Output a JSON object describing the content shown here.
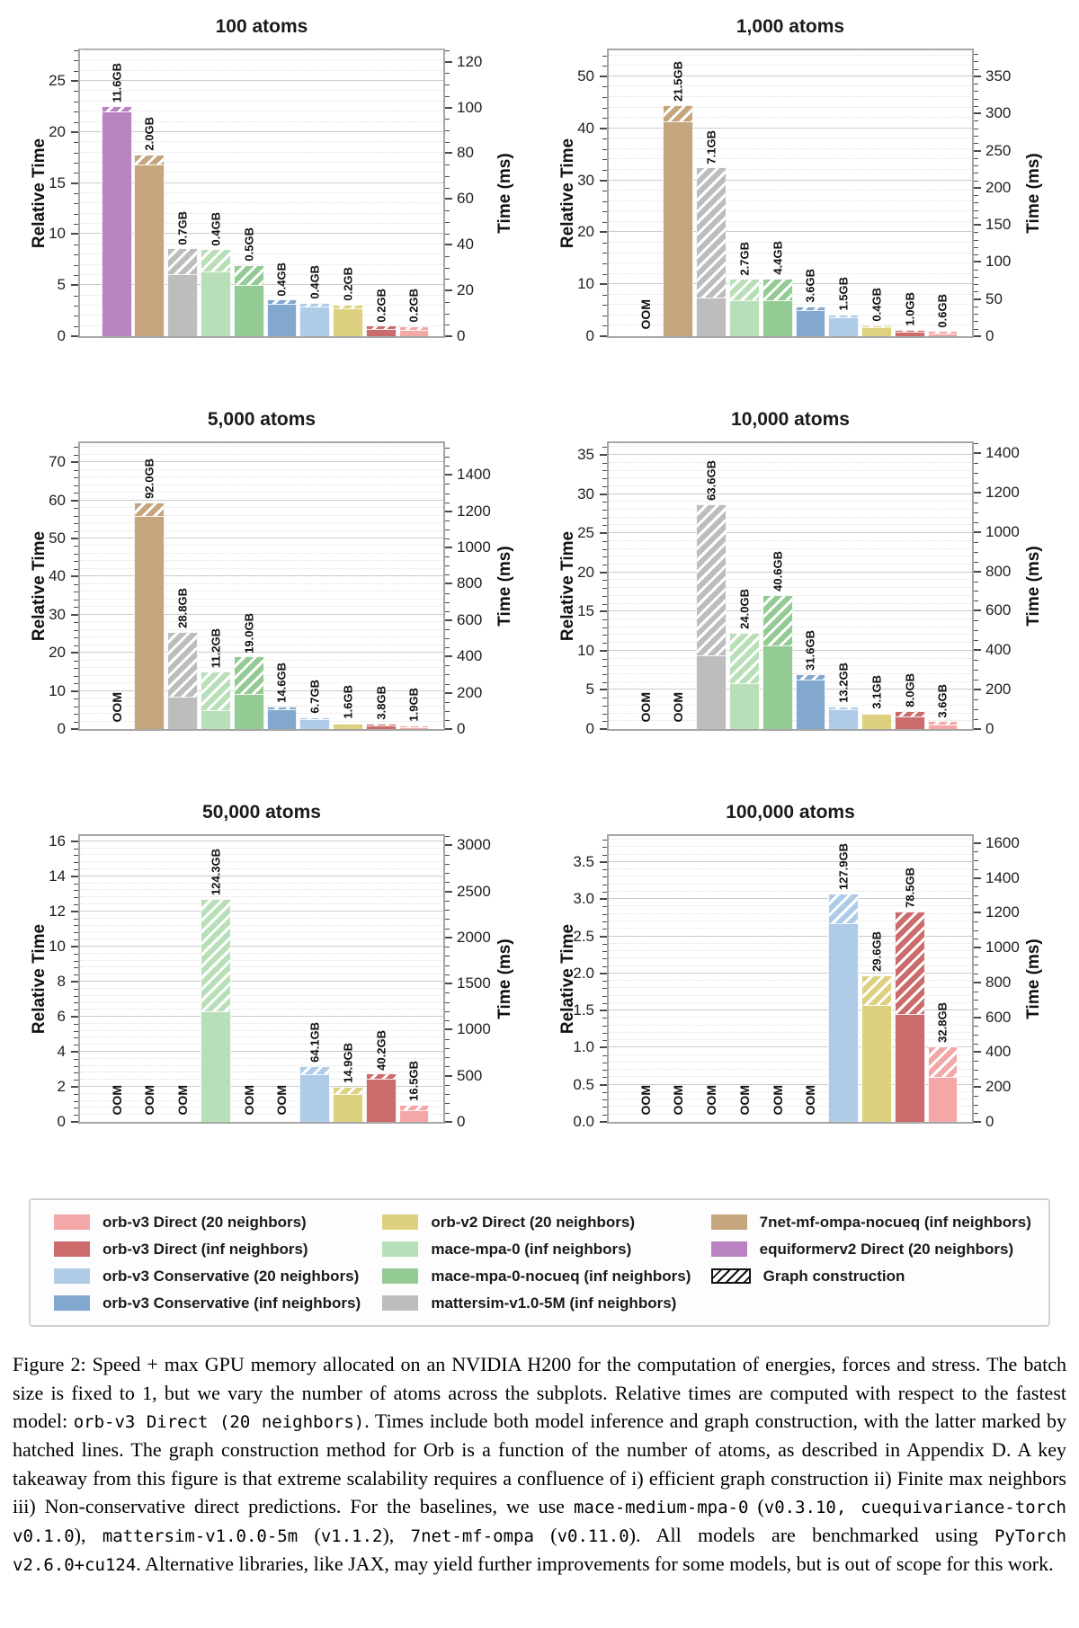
{
  "colors": {
    "orb_v3_direct_20": "#f4a7a7",
    "orb_v3_direct_inf": "#cb6b6b",
    "orb_v3_cons_20": "#aecbe8",
    "orb_v3_cons_inf": "#82a8d0",
    "orb_v2": "#ddd17f",
    "mace": "#b9dfb9",
    "mace_nocueq": "#94ca94",
    "mattersim": "#bdbdbd",
    "sevennet": "#c5a57e",
    "equiformerv2": "#b983c1"
  },
  "legend": {
    "columns": [
      [
        {
          "label": "orb-v3 Direct (20 neighbors)",
          "ckey": "orb_v3_direct_20"
        },
        {
          "label": "orb-v3 Direct (inf neighbors)",
          "ckey": "orb_v3_direct_inf"
        },
        {
          "label": "orb-v3 Conservative (20 neighbors)",
          "ckey": "orb_v3_cons_20"
        },
        {
          "label": "orb-v3 Conservative (inf neighbors)",
          "ckey": "orb_v3_cons_inf"
        }
      ],
      [
        {
          "label": "orb-v2 Direct (20 neighbors)",
          "ckey": "orb_v2"
        },
        {
          "label": "mace-mpa-0 (inf neighbors)",
          "ckey": "mace"
        },
        {
          "label": "mace-mpa-0-nocueq (inf neighbors)",
          "ckey": "mace_nocueq"
        },
        {
          "label": "mattersim-v1.0-5M (inf neighbors)",
          "ckey": "mattersim"
        }
      ],
      [
        {
          "label": "7net-mf-ompa-nocueq (inf neighbors)",
          "ckey": "sevennet"
        },
        {
          "label": "equiformerv2 Direct (20 neighbors)",
          "ckey": "equiformerv2"
        },
        {
          "label": "Graph construction",
          "hatch": true
        }
      ]
    ]
  },
  "chart_data": [
    {
      "type": "bar",
      "title": "100 atoms",
      "ylabel_left": "Relative Time",
      "ylabel_right": "Time (ms)",
      "ylim_left": [
        0,
        28
      ],
      "ylim_right": [
        0,
        125
      ],
      "left_ticks": [
        0,
        5,
        10,
        15,
        20,
        25
      ],
      "left_tick_labels": [
        "0",
        "5",
        "10",
        "15",
        "20",
        "25"
      ],
      "right_ticks": [
        0,
        20,
        40,
        60,
        80,
        100,
        120
      ],
      "right_tick_labels": [
        "0",
        "20",
        "40",
        "60",
        "80",
        "100",
        "120"
      ],
      "minor_step": 1,
      "right_minor_step": 5,
      "bars": [
        {
          "series": "equiformerv2 Direct (20 neighbors)",
          "ckey": "equiformerv2",
          "total": 22.5,
          "solid": 22.0,
          "mem": "11.6GB"
        },
        {
          "series": "7net-mf-ompa-nocueq (inf neighbors)",
          "ckey": "sevennet",
          "total": 17.8,
          "solid": 16.8,
          "mem": "2.0GB"
        },
        {
          "series": "mattersim-v1.0-5M (inf neighbors)",
          "ckey": "mattersim",
          "total": 8.6,
          "solid": 6.1,
          "mem": "0.7GB"
        },
        {
          "series": "mace-mpa-0 (inf neighbors)",
          "ckey": "mace",
          "total": 8.5,
          "solid": 6.3,
          "mem": "0.4GB"
        },
        {
          "series": "mace-mpa-0-nocueq (inf neighbors)",
          "ckey": "mace_nocueq",
          "total": 7.0,
          "solid": 5.0,
          "mem": "0.5GB"
        },
        {
          "series": "orb-v3 Conservative (inf neighbors)",
          "ckey": "orb_v3_cons_inf",
          "total": 3.6,
          "solid": 3.2,
          "mem": "0.4GB"
        },
        {
          "series": "orb-v3 Conservative (20 neighbors)",
          "ckey": "orb_v3_cons_20",
          "total": 3.3,
          "solid": 2.9,
          "mem": "0.4GB"
        },
        {
          "series": "orb-v2 Direct (20 neighbors)",
          "ckey": "orb_v2",
          "total": 3.1,
          "solid": 2.7,
          "mem": "0.2GB"
        },
        {
          "series": "orb-v3 Direct (inf neighbors)",
          "ckey": "orb_v3_direct_inf",
          "total": 1.05,
          "solid": 0.7,
          "mem": "0.2GB"
        },
        {
          "series": "orb-v3 Direct (20 neighbors)",
          "ckey": "orb_v3_direct_20",
          "total": 1.0,
          "solid": 0.65,
          "mem": "0.2GB"
        }
      ]
    },
    {
      "type": "bar",
      "title": "1,000 atoms",
      "ylabel_left": "Relative Time",
      "ylabel_right": "Time (ms)",
      "ylim_left": [
        0,
        55
      ],
      "ylim_right": [
        0,
        385
      ],
      "left_ticks": [
        0,
        10,
        20,
        30,
        40,
        50
      ],
      "left_tick_labels": [
        "0",
        "10",
        "20",
        "30",
        "40",
        "50"
      ],
      "right_ticks": [
        0,
        50,
        100,
        150,
        200,
        250,
        300,
        350
      ],
      "right_tick_labels": [
        "0",
        "50",
        "100",
        "150",
        "200",
        "250",
        "300",
        "350"
      ],
      "minor_step": 2,
      "right_minor_step": 10,
      "bars": [
        {
          "series": "equiformerv2 Direct (20 neighbors)",
          "ckey": "equiformerv2",
          "oom": true
        },
        {
          "series": "7net-mf-ompa-nocueq (inf neighbors)",
          "ckey": "sevennet",
          "total": 44.5,
          "solid": 41.3,
          "mem": "21.5GB"
        },
        {
          "series": "mattersim-v1.0-5M (inf neighbors)",
          "ckey": "mattersim",
          "total": 32.5,
          "solid": 7.5,
          "mem": "7.1GB"
        },
        {
          "series": "mace-mpa-0 (inf neighbors)",
          "ckey": "mace",
          "total": 11.0,
          "solid": 6.9,
          "mem": "2.7GB"
        },
        {
          "series": "mace-mpa-0-nocueq (inf neighbors)",
          "ckey": "mace_nocueq",
          "total": 11.1,
          "solid": 7.0,
          "mem": "4.4GB"
        },
        {
          "series": "orb-v3 Conservative (inf neighbors)",
          "ckey": "orb_v3_cons_inf",
          "total": 5.7,
          "solid": 5.1,
          "mem": "3.6GB"
        },
        {
          "series": "orb-v3 Conservative (20 neighbors)",
          "ckey": "orb_v3_cons_20",
          "total": 4.2,
          "solid": 3.6,
          "mem": "1.5GB"
        },
        {
          "series": "orb-v2 Direct (20 neighbors)",
          "ckey": "orb_v2",
          "total": 2.1,
          "solid": 1.8,
          "mem": "0.4GB"
        },
        {
          "series": "orb-v3 Direct (inf neighbors)",
          "ckey": "orb_v3_direct_inf",
          "total": 1.3,
          "solid": 0.85,
          "mem": "1.0GB"
        },
        {
          "series": "orb-v3 Direct (20 neighbors)",
          "ckey": "orb_v3_direct_20",
          "total": 1.0,
          "solid": 0.6,
          "mem": "0.6GB"
        }
      ]
    },
    {
      "type": "bar",
      "title": "5,000 atoms",
      "ylabel_left": "Relative Time",
      "ylabel_right": "Time (ms)",
      "ylim_left": [
        0,
        75
      ],
      "ylim_right": [
        0,
        1575
      ],
      "left_ticks": [
        0,
        10,
        20,
        30,
        40,
        50,
        60,
        70
      ],
      "left_tick_labels": [
        "0",
        "10",
        "20",
        "30",
        "40",
        "50",
        "60",
        "70"
      ],
      "right_ticks": [
        0,
        200,
        400,
        600,
        800,
        1000,
        1200,
        1400
      ],
      "right_tick_labels": [
        "0",
        "200",
        "400",
        "600",
        "800",
        "1000",
        "1200",
        "1400"
      ],
      "minor_step": 2,
      "right_minor_step": 50,
      "bars": [
        {
          "series": "equiformerv2 Direct (20 neighbors)",
          "ckey": "equiformerv2",
          "oom": true
        },
        {
          "series": "7net-mf-ompa-nocueq (inf neighbors)",
          "ckey": "sevennet",
          "total": 59.5,
          "solid": 56.0,
          "mem": "92.0GB"
        },
        {
          "series": "mattersim-v1.0-5M (inf neighbors)",
          "ckey": "mattersim",
          "total": 25.5,
          "solid": 8.5,
          "mem": "28.8GB"
        },
        {
          "series": "mace-mpa-0 (inf neighbors)",
          "ckey": "mace",
          "total": 15.0,
          "solid": 5.0,
          "mem": "11.2GB"
        },
        {
          "series": "mace-mpa-0-nocueq (inf neighbors)",
          "ckey": "mace_nocueq",
          "total": 19.0,
          "solid": 9.3,
          "mem": "19.0GB"
        },
        {
          "series": "orb-v3 Conservative (inf neighbors)",
          "ckey": "orb_v3_cons_inf",
          "total": 5.9,
          "solid": 5.2,
          "mem": "14.6GB"
        },
        {
          "series": "orb-v3 Conservative (20 neighbors)",
          "ckey": "orb_v3_cons_20",
          "total": 3.1,
          "solid": 2.6,
          "mem": "6.7GB"
        },
        {
          "series": "orb-v2 Direct (20 neighbors)",
          "ckey": "orb_v2",
          "total": 1.7,
          "solid": 1.4,
          "mem": "1.6GB"
        },
        {
          "series": "orb-v3 Direct (inf neighbors)",
          "ckey": "orb_v3_direct_inf",
          "total": 1.5,
          "solid": 1.0,
          "mem": "3.8GB"
        },
        {
          "series": "orb-v3 Direct (20 neighbors)",
          "ckey": "orb_v3_direct_20",
          "total": 1.0,
          "solid": 0.55,
          "mem": "1.9GB"
        }
      ]
    },
    {
      "type": "bar",
      "title": "10,000 atoms",
      "ylabel_left": "Relative Time",
      "ylabel_right": "Time (ms)",
      "ylim_left": [
        0,
        36.5
      ],
      "ylim_right": [
        0,
        1450
      ],
      "left_ticks": [
        0,
        5,
        10,
        15,
        20,
        25,
        30,
        35
      ],
      "left_tick_labels": [
        "0",
        "5",
        "10",
        "15",
        "20",
        "25",
        "30",
        "35"
      ],
      "right_ticks": [
        0,
        200,
        400,
        600,
        800,
        1000,
        1200,
        1400
      ],
      "right_tick_labels": [
        "0",
        "200",
        "400",
        "600",
        "800",
        "1000",
        "1200",
        "1400"
      ],
      "minor_step": 1,
      "right_minor_step": 50,
      "bars": [
        {
          "series": "equiformerv2 Direct (20 neighbors)",
          "ckey": "equiformerv2",
          "oom": true
        },
        {
          "series": "7net-mf-ompa-nocueq (inf neighbors)",
          "ckey": "sevennet",
          "oom": true
        },
        {
          "series": "mattersim-v1.0-5M (inf neighbors)",
          "ckey": "mattersim",
          "total": 28.7,
          "solid": 9.4,
          "mem": "63.6GB"
        },
        {
          "series": "mace-mpa-0 (inf neighbors)",
          "ckey": "mace",
          "total": 12.3,
          "solid": 5.9,
          "mem": "24.0GB"
        },
        {
          "series": "mace-mpa-0-nocueq (inf neighbors)",
          "ckey": "mace_nocueq",
          "total": 17.1,
          "solid": 10.7,
          "mem": "40.6GB"
        },
        {
          "series": "orb-v3 Conservative (inf neighbors)",
          "ckey": "orb_v3_cons_inf",
          "total": 7.0,
          "solid": 6.3,
          "mem": "31.6GB"
        },
        {
          "series": "orb-v3 Conservative (20 neighbors)",
          "ckey": "orb_v3_cons_20",
          "total": 2.9,
          "solid": 2.5,
          "mem": "13.2GB"
        },
        {
          "series": "orb-v2 Direct (20 neighbors)",
          "ckey": "orb_v2",
          "total": 2.1,
          "solid": 1.9,
          "mem": "3.1GB"
        },
        {
          "series": "orb-v3 Direct (inf neighbors)",
          "ckey": "orb_v3_direct_inf",
          "total": 2.3,
          "solid": 1.6,
          "mem": "8.0GB"
        },
        {
          "series": "orb-v3 Direct (20 neighbors)",
          "ckey": "orb_v3_direct_20",
          "total": 1.0,
          "solid": 0.6,
          "mem": "3.6GB"
        }
      ]
    },
    {
      "type": "bar",
      "title": "50,000 atoms",
      "ylabel_left": "Relative Time",
      "ylabel_right": "Time (ms)",
      "ylim_left": [
        0,
        16.3
      ],
      "ylim_right": [
        0,
        3100
      ],
      "left_ticks": [
        0,
        2,
        4,
        6,
        8,
        10,
        12,
        14,
        16
      ],
      "left_tick_labels": [
        "0",
        "2",
        "4",
        "6",
        "8",
        "10",
        "12",
        "14",
        "16"
      ],
      "right_ticks": [
        0,
        500,
        1000,
        1500,
        2000,
        2500,
        3000
      ],
      "right_tick_labels": [
        "0",
        "500",
        "1000",
        "1500",
        "2000",
        "2500",
        "3000"
      ],
      "minor_step": 0.4,
      "right_minor_step": 100,
      "bars": [
        {
          "series": "equiformerv2 Direct (20 neighbors)",
          "ckey": "equiformerv2",
          "oom": true
        },
        {
          "series": "7net-mf-ompa-nocueq (inf neighbors)",
          "ckey": "sevennet",
          "oom": true
        },
        {
          "series": "mattersim-v1.0-5M (inf neighbors)",
          "ckey": "mattersim",
          "oom": true
        },
        {
          "series": "mace-mpa-0 (inf neighbors)",
          "ckey": "mace",
          "total": 12.7,
          "solid": 6.3,
          "mem": "124.3GB"
        },
        {
          "series": "mace-mpa-0-nocueq (inf neighbors)",
          "ckey": "mace_nocueq",
          "oom": true
        },
        {
          "series": "orb-v3 Conservative (inf neighbors)",
          "ckey": "orb_v3_cons_inf",
          "oom": true
        },
        {
          "series": "orb-v3 Conservative (20 neighbors)",
          "ckey": "orb_v3_cons_20",
          "total": 3.2,
          "solid": 2.7,
          "mem": "64.1GB"
        },
        {
          "series": "orb-v2 Direct (20 neighbors)",
          "ckey": "orb_v2",
          "total": 2.0,
          "solid": 1.6,
          "mem": "14.9GB"
        },
        {
          "series": "orb-v3 Direct (inf neighbors)",
          "ckey": "orb_v3_direct_inf",
          "total": 2.75,
          "solid": 2.45,
          "mem": "40.2GB"
        },
        {
          "series": "orb-v3 Direct (20 neighbors)",
          "ckey": "orb_v3_direct_20",
          "total": 1.0,
          "solid": 0.65,
          "mem": "16.5GB"
        }
      ]
    },
    {
      "type": "bar",
      "title": "100,000 atoms",
      "ylabel_left": "Relative Time",
      "ylabel_right": "Time (ms)",
      "ylim_left": [
        0,
        3.85
      ],
      "ylim_right": [
        0,
        1640
      ],
      "left_ticks": [
        0,
        0.5,
        1.0,
        1.5,
        2.0,
        2.5,
        3.0,
        3.5
      ],
      "left_tick_labels": [
        "0.0",
        "0.5",
        "1.0",
        "1.5",
        "2.0",
        "2.5",
        "3.0",
        "3.5"
      ],
      "right_ticks": [
        0,
        200,
        400,
        600,
        800,
        1000,
        1200,
        1400,
        1600
      ],
      "right_tick_labels": [
        "0",
        "200",
        "400",
        "600",
        "800",
        "1000",
        "1200",
        "1400",
        "1600"
      ],
      "minor_step": 0.1,
      "right_minor_step": 50,
      "bars": [
        {
          "series": "equiformerv2 Direct (20 neighbors)",
          "ckey": "equiformerv2",
          "oom": true
        },
        {
          "series": "7net-mf-ompa-nocueq (inf neighbors)",
          "ckey": "sevennet",
          "oom": true
        },
        {
          "series": "mattersim-v1.0-5M (inf neighbors)",
          "ckey": "mattersim",
          "oom": true
        },
        {
          "series": "mace-mpa-0 (inf neighbors)",
          "ckey": "mace",
          "oom": true
        },
        {
          "series": "mace-mpa-0-nocueq (inf neighbors)",
          "ckey": "mace_nocueq",
          "oom": true
        },
        {
          "series": "orb-v3 Conservative (inf neighbors)",
          "ckey": "orb_v3_cons_inf",
          "oom": true
        },
        {
          "series": "orb-v3 Conservative (20 neighbors)",
          "ckey": "orb_v3_cons_20",
          "total": 3.07,
          "solid": 2.67,
          "mem": "127.9GB"
        },
        {
          "series": "orb-v2 Direct (20 neighbors)",
          "ckey": "orb_v2",
          "total": 1.97,
          "solid": 1.57,
          "mem": "29.6GB"
        },
        {
          "series": "orb-v3 Direct (inf neighbors)",
          "ckey": "orb_v3_direct_inf",
          "total": 2.83,
          "solid": 1.45,
          "mem": "78.5GB"
        },
        {
          "series": "orb-v3 Direct (20 neighbors)",
          "ckey": "orb_v3_direct_20",
          "total": 1.02,
          "solid": 0.6,
          "mem": "32.8GB"
        }
      ]
    }
  ],
  "caption": {
    "segments": [
      {
        "t": "Figure 2: "
      },
      {
        "t": "Speed + max GPU memory allocated on an NVIDIA H200 for the computation of energies, forces and stress. The batch size is fixed to 1, but we vary the number of atoms across the subplots. Relative times are computed with respect to the fastest model: "
      },
      {
        "t": "orb-v3 Direct (20 neighbors)",
        "mono": true
      },
      {
        "t": ". Times include both model inference and graph construction, with the latter marked by hatched lines. The graph construction method for Orb is a function of the number of atoms, as described in Appendix D. A key takeaway from this figure is that extreme scalability requires a confluence of i) efficient graph construction ii) Finite max neighbors iii) Non-conservative direct predictions. For the baselines, we use "
      },
      {
        "t": "mace-medium-mpa-0",
        "mono": true
      },
      {
        "t": " ("
      },
      {
        "t": "v0.3.10, cuequivariance-torch v0.1.0",
        "mono": true
      },
      {
        "t": "), "
      },
      {
        "t": "mattersim-v1.0.0-5m",
        "mono": true
      },
      {
        "t": " ("
      },
      {
        "t": "v1.1.2",
        "mono": true
      },
      {
        "t": "), "
      },
      {
        "t": "7net-mf-ompa",
        "mono": true
      },
      {
        "t": " ("
      },
      {
        "t": "v0.11.0",
        "mono": true
      },
      {
        "t": ").  All models are benchmarked using "
      },
      {
        "t": "PyTorch v2.6.0+cu124",
        "mono": true
      },
      {
        "t": ".  Alternative libraries, like JAX, may yield further improvements for some models, but is out of scope for this work."
      }
    ]
  }
}
